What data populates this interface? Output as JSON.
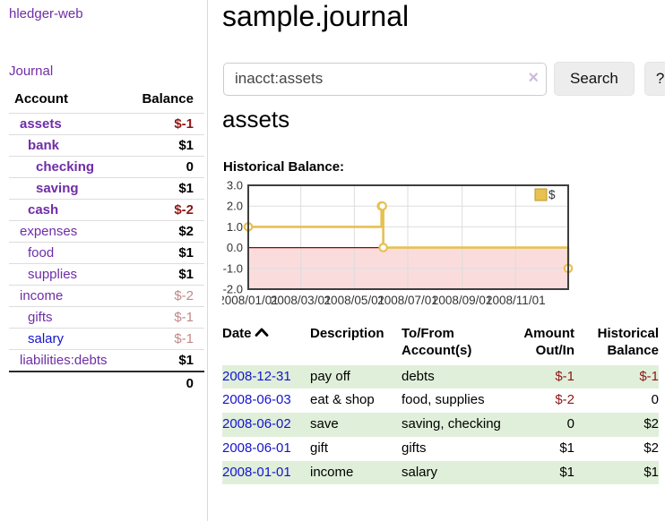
{
  "colors": {
    "accent_purple": "#6f2da8",
    "link_blue": "#1414cc",
    "negative_strong": "#8e1616",
    "negative_soft": "#c28787",
    "row_green": "#e0efda",
    "chart_line_gold": "#e7c053",
    "chart_negative_fill": "#fbdcdc",
    "chart_zero_line": "#990000",
    "chart_border": "#3e3e3e"
  },
  "sidebar": {
    "brand": "hledger-web",
    "nav": [
      {
        "label": "Journal"
      }
    ],
    "columns": {
      "account": "Account",
      "balance": "Balance"
    },
    "accounts": [
      {
        "name": "assets",
        "balance": "$-1",
        "level": 1,
        "selected": true,
        "tone": "neg-strong"
      },
      {
        "name": "bank",
        "balance": "$1",
        "level": 2,
        "selected": true,
        "tone": "plain"
      },
      {
        "name": "checking",
        "balance": "0",
        "level": 3,
        "selected": true,
        "tone": "plain"
      },
      {
        "name": "saving",
        "balance": "$1",
        "level": 3,
        "selected": true,
        "tone": "plain"
      },
      {
        "name": "cash",
        "balance": "$-2",
        "level": 2,
        "selected": true,
        "tone": "neg-strong"
      },
      {
        "name": "expenses",
        "balance": "$2",
        "level": 1,
        "selected": false,
        "tone": "plain"
      },
      {
        "name": "food",
        "balance": "$1",
        "level": 2,
        "selected": false,
        "tone": "plain"
      },
      {
        "name": "supplies",
        "balance": "$1",
        "level": 2,
        "selected": false,
        "tone": "plain"
      },
      {
        "name": "income",
        "balance": "$-2",
        "level": 1,
        "selected": false,
        "tone": "neg-soft"
      },
      {
        "name": "gifts",
        "balance": "$-1",
        "level": 2,
        "selected": false,
        "tone": "neg-soft"
      },
      {
        "name": "salary",
        "balance": "$-1",
        "level": 2,
        "selected": false,
        "tone": "neg-soft",
        "link_style": "blue"
      },
      {
        "name": "liabilities:debts",
        "balance": "$1",
        "level": 1,
        "selected": false,
        "tone": "plain"
      }
    ],
    "total": "0"
  },
  "main": {
    "title": "sample.journal",
    "search": {
      "value": "inacct:assets",
      "clear_icon": "×",
      "search_button": "Search",
      "help_button": "?"
    },
    "account_heading": "assets",
    "chart_heading": "Historical Balance:"
  },
  "chart_data": {
    "type": "line",
    "title": "Historical Balance",
    "legend": [
      {
        "label": "$",
        "color": "#e8c24f"
      }
    ],
    "legend_position": "top-right",
    "grid": true,
    "x_range": [
      "2008-01-01",
      "2008-12-31"
    ],
    "ylim": [
      -2,
      3
    ],
    "yticks": [
      "3.0",
      "2.0",
      "1.0",
      "0.0",
      "-1.0",
      "-2.0"
    ],
    "ytick_values": [
      3,
      2,
      1,
      0,
      -1,
      -2
    ],
    "xticks": [
      {
        "label": "2008/01/01",
        "date": "2008-01-01"
      },
      {
        "label": "2008/03/01",
        "date": "2008-03-01"
      },
      {
        "label": "2008/05/01",
        "date": "2008-05-01"
      },
      {
        "label": "2008/07/01",
        "date": "2008-07-01"
      },
      {
        "label": "2008/09/01",
        "date": "2008-09-01"
      },
      {
        "label": "2008/11/01",
        "date": "2008-11-01"
      }
    ],
    "negative_region": {
      "from": 0,
      "to": -2
    },
    "series": [
      {
        "name": "$",
        "style": "step-after",
        "points": [
          {
            "date": "2008-01-01",
            "value": 1
          },
          {
            "date": "2008-06-01",
            "value": 2
          },
          {
            "date": "2008-06-02",
            "value": 2
          },
          {
            "date": "2008-06-03",
            "value": 0
          },
          {
            "date": "2008-12-31",
            "value": -1
          }
        ]
      }
    ]
  },
  "register": {
    "columns": [
      {
        "label": "Date",
        "sort": "asc",
        "align": "left"
      },
      {
        "label": "Description",
        "align": "left"
      },
      {
        "label": "To/From Account(s)",
        "align": "left"
      },
      {
        "label": "Amount Out/In",
        "align": "right"
      },
      {
        "label": "Historical Balance",
        "align": "right"
      }
    ],
    "rows": [
      {
        "date": "2008-12-31",
        "description": "pay off",
        "accounts": "debts",
        "amount": "$-1",
        "balance": "$-1"
      },
      {
        "date": "2008-06-03",
        "description": "eat & shop",
        "accounts": "food, supplies",
        "amount": "$-2",
        "balance": "0"
      },
      {
        "date": "2008-06-02",
        "description": "save",
        "accounts": "saving, checking",
        "amount": "0",
        "balance": "$2"
      },
      {
        "date": "2008-06-01",
        "description": "gift",
        "accounts": "gifts",
        "amount": "$1",
        "balance": "$2"
      },
      {
        "date": "2008-01-01",
        "description": "income",
        "accounts": "salary",
        "amount": "$1",
        "balance": "$1"
      }
    ]
  }
}
